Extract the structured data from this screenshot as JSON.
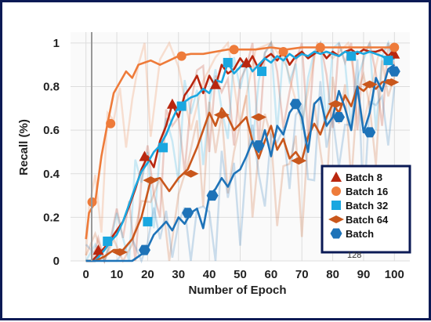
{
  "chart_data": {
    "type": "line",
    "xlabel": "Number of Epoch",
    "ylabel": "Recall (%)",
    "xlim": [
      -5,
      105
    ],
    "ylim": [
      0,
      1.05
    ],
    "x_ticks": [
      "0",
      "10",
      "20",
      "30",
      "40",
      "50",
      "60",
      "70",
      "80",
      "90",
      "100"
    ],
    "y_ticks": [
      "0",
      "0.2",
      "0.4",
      "0.6",
      "0.8",
      "1"
    ],
    "grid": true,
    "legend_position": "right",
    "series": [
      {
        "name": "Batch 8",
        "color": "#b9270f",
        "marker": "triangle",
        "x": [
          0,
          2,
          4,
          6,
          8,
          10,
          12,
          14,
          16,
          18,
          20,
          22,
          24,
          26,
          28,
          30,
          32,
          34,
          36,
          38,
          40,
          42,
          44,
          46,
          48,
          50,
          52,
          54,
          56,
          58,
          60,
          62,
          64,
          66,
          68,
          70,
          72,
          74,
          76,
          78,
          80,
          82,
          84,
          86,
          88,
          90,
          92,
          94,
          96,
          98,
          100
        ],
        "y": [
          0,
          0,
          0.03,
          0.06,
          0.1,
          0.14,
          0.18,
          0.25,
          0.33,
          0.42,
          0.48,
          0.43,
          0.55,
          0.62,
          0.72,
          0.66,
          0.76,
          0.8,
          0.85,
          0.77,
          0.85,
          0.8,
          0.9,
          0.86,
          0.88,
          0.93,
          0.89,
          0.94,
          0.88,
          0.93,
          0.95,
          0.92,
          0.96,
          0.9,
          0.94,
          0.96,
          0.93,
          0.95,
          0.97,
          0.93,
          0.96,
          0.94,
          0.96,
          0.97,
          0.95,
          0.97,
          0.96,
          0.96,
          0.97,
          0.94,
          0.97
        ],
        "markers_x": [
          4,
          19,
          28,
          42,
          52,
          100
        ],
        "markers_y": [
          0.05,
          0.48,
          0.72,
          0.81,
          0.91,
          0.95
        ]
      },
      {
        "name": "Batch 16",
        "color": "#ee7b3a",
        "marker": "circle",
        "x": [
          0,
          1,
          3,
          5,
          7,
          9,
          11,
          13,
          15,
          17,
          19,
          21,
          24,
          27,
          30,
          34,
          38,
          42,
          46,
          50,
          55,
          60,
          65,
          70,
          75,
          80,
          85,
          90,
          95,
          100
        ],
        "y": [
          0.1,
          0.22,
          0.27,
          0.48,
          0.63,
          0.77,
          0.82,
          0.87,
          0.84,
          0.9,
          0.91,
          0.92,
          0.9,
          0.92,
          0.94,
          0.95,
          0.95,
          0.96,
          0.97,
          0.97,
          0.97,
          0.98,
          0.97,
          0.98,
          0.98,
          0.98,
          0.98,
          0.98,
          0.98,
          0.98
        ],
        "markers_x": [
          2,
          8,
          31,
          48,
          64,
          76,
          100
        ],
        "markers_y": [
          0.27,
          0.63,
          0.94,
          0.97,
          0.96,
          0.98,
          0.98
        ]
      },
      {
        "name": "Batch 32",
        "color": "#1aa7e0",
        "marker": "square",
        "x": [
          0,
          3,
          6,
          8,
          10,
          12,
          14,
          16,
          18,
          20,
          22,
          24,
          26,
          28,
          30,
          32,
          34,
          36,
          38,
          40,
          42,
          44,
          46,
          48,
          50,
          52,
          54,
          56,
          58,
          60,
          62,
          64,
          66,
          68,
          70,
          72,
          74,
          76,
          78,
          80,
          82,
          84,
          86,
          88,
          90,
          92,
          94,
          96,
          98,
          100
        ],
        "y": [
          0,
          0,
          0.05,
          0.09,
          0.12,
          0.18,
          0.26,
          0.34,
          0.41,
          0.45,
          0.5,
          0.53,
          0.58,
          0.65,
          0.71,
          0.73,
          0.75,
          0.76,
          0.79,
          0.77,
          0.83,
          0.82,
          0.91,
          0.86,
          0.89,
          0.92,
          0.87,
          0.9,
          0.93,
          0.91,
          0.94,
          0.92,
          0.95,
          0.93,
          0.95,
          0.94,
          0.96,
          0.95,
          0.96,
          0.95,
          0.94,
          0.96,
          0.95,
          0.96,
          0.95,
          0.96,
          0.95,
          0.94,
          0.92,
          0.93
        ],
        "markers_x": [
          7,
          20,
          25,
          31,
          46,
          57,
          86,
          98
        ],
        "markers_y": [
          0.09,
          0.18,
          0.52,
          0.71,
          0.91,
          0.87,
          0.94,
          0.92
        ]
      },
      {
        "name": "Batch 64",
        "color": "#c9571c",
        "marker": "diamond",
        "x": [
          0,
          3,
          6,
          9,
          12,
          15,
          18,
          21,
          24,
          27,
          30,
          33,
          36,
          38,
          40,
          42,
          44,
          46,
          48,
          50,
          52,
          54,
          56,
          58,
          60,
          62,
          64,
          66,
          68,
          70,
          72,
          74,
          76,
          78,
          80,
          82,
          84,
          86,
          88,
          90,
          92,
          94,
          96,
          98,
          100
        ],
        "y": [
          0,
          0,
          0.02,
          0.05,
          0.05,
          0.1,
          0.2,
          0.37,
          0.38,
          0.32,
          0.38,
          0.42,
          0.52,
          0.6,
          0.68,
          0.62,
          0.7,
          0.66,
          0.6,
          0.63,
          0.66,
          0.55,
          0.47,
          0.55,
          0.62,
          0.51,
          0.56,
          0.47,
          0.5,
          0.46,
          0.57,
          0.63,
          0.58,
          0.66,
          0.72,
          0.68,
          0.76,
          0.71,
          0.8,
          0.78,
          0.81,
          0.79,
          0.82,
          0.83,
          0.82
        ],
        "markers_x": [
          11,
          21,
          34,
          44,
          56,
          69,
          81,
          92,
          99
        ],
        "markers_y": [
          0.04,
          0.37,
          0.4,
          0.67,
          0.66,
          0.46,
          0.72,
          0.81,
          0.82
        ]
      },
      {
        "name": "Batch 128",
        "color": "#1e73b8",
        "marker": "hexagon",
        "x": [
          0,
          5,
          10,
          15,
          18,
          20,
          22,
          24,
          26,
          28,
          30,
          32,
          34,
          36,
          38,
          40,
          42,
          44,
          46,
          48,
          50,
          52,
          54,
          56,
          58,
          60,
          62,
          64,
          66,
          68,
          70,
          72,
          74,
          76,
          78,
          80,
          82,
          84,
          86,
          88,
          90,
          92,
          94,
          96,
          98,
          100
        ],
        "y": [
          0,
          0,
          0,
          0,
          0.03,
          0.06,
          0.12,
          0.15,
          0.18,
          0.14,
          0.2,
          0.17,
          0.22,
          0.24,
          0.15,
          0.3,
          0.33,
          0.38,
          0.34,
          0.4,
          0.42,
          0.48,
          0.55,
          0.5,
          0.6,
          0.48,
          0.62,
          0.58,
          0.68,
          0.72,
          0.66,
          0.5,
          0.72,
          0.75,
          0.62,
          0.66,
          0.78,
          0.7,
          0.6,
          0.8,
          0.59,
          0.68,
          0.84,
          0.78,
          0.88,
          0.9
        ],
        "markers_x": [
          19,
          33,
          41,
          56,
          68,
          82,
          92,
          100
        ],
        "markers_y": [
          0.05,
          0.22,
          0.3,
          0.53,
          0.72,
          0.66,
          0.59,
          0.87
        ]
      }
    ],
    "legend": {
      "entries": [
        "Batch 8",
        "Batch 16",
        "Batch 32",
        "Batch 64",
        "Batch"
      ],
      "overflow_text": "128"
    }
  }
}
